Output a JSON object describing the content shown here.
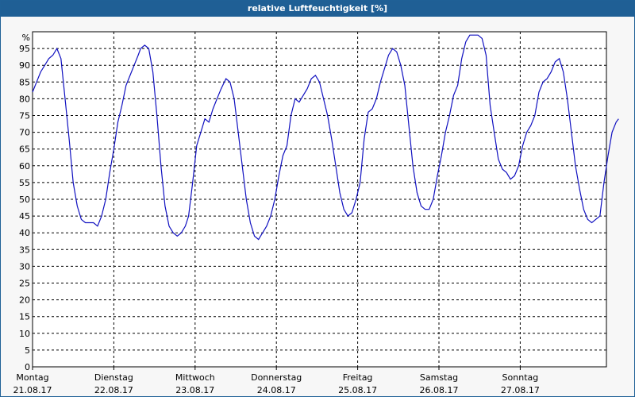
{
  "title": "relative Luftfeuchtigkeit [%]",
  "chart_data": {
    "type": "line",
    "title": "relative Luftfeuchtigkeit [%]",
    "ylabel": "%",
    "ylim": [
      0,
      100
    ],
    "yticks": [
      0,
      5,
      10,
      15,
      20,
      25,
      30,
      35,
      40,
      45,
      50,
      55,
      60,
      65,
      70,
      75,
      80,
      85,
      90,
      95
    ],
    "grid": true,
    "days": [
      {
        "name": "Montag",
        "date": "21.08.17"
      },
      {
        "name": "Dienstag",
        "date": "22.08.17"
      },
      {
        "name": "Mittwoch",
        "date": "23.08.17"
      },
      {
        "name": "Donnerstag",
        "date": "24.08.17"
      },
      {
        "name": "Freitag",
        "date": "25.08.17"
      },
      {
        "name": "Samstag",
        "date": "26.08.17"
      },
      {
        "name": "Sonntag",
        "date": "27.08.17"
      }
    ],
    "x_unit": "days since Monday 21.08.17 00:00",
    "line_color": "#1010c0",
    "series": [
      {
        "name": "",
        "points": [
          [
            0.0,
            82
          ],
          [
            0.05,
            85
          ],
          [
            0.1,
            88
          ],
          [
            0.15,
            90
          ],
          [
            0.2,
            92
          ],
          [
            0.25,
            93
          ],
          [
            0.3,
            95
          ],
          [
            0.35,
            92
          ],
          [
            0.4,
            80
          ],
          [
            0.45,
            68
          ],
          [
            0.5,
            55
          ],
          [
            0.55,
            48
          ],
          [
            0.6,
            44
          ],
          [
            0.65,
            43
          ],
          [
            0.75,
            43
          ],
          [
            0.8,
            42
          ],
          [
            0.85,
            45
          ],
          [
            0.9,
            50
          ],
          [
            0.95,
            58
          ],
          [
            1.0,
            65
          ],
          [
            1.05,
            73
          ],
          [
            1.1,
            78
          ],
          [
            1.15,
            84
          ],
          [
            1.2,
            87
          ],
          [
            1.25,
            90
          ],
          [
            1.3,
            93
          ],
          [
            1.33,
            95
          ],
          [
            1.38,
            96
          ],
          [
            1.43,
            95
          ],
          [
            1.48,
            88
          ],
          [
            1.53,
            75
          ],
          [
            1.58,
            60
          ],
          [
            1.63,
            48
          ],
          [
            1.68,
            42
          ],
          [
            1.73,
            40
          ],
          [
            1.78,
            39
          ],
          [
            1.83,
            40
          ],
          [
            1.88,
            42
          ],
          [
            1.92,
            45
          ],
          [
            1.97,
            55
          ],
          [
            2.02,
            66
          ],
          [
            2.07,
            70
          ],
          [
            2.12,
            74
          ],
          [
            2.17,
            73
          ],
          [
            2.22,
            77
          ],
          [
            2.27,
            80
          ],
          [
            2.32,
            83
          ],
          [
            2.38,
            86
          ],
          [
            2.43,
            85
          ],
          [
            2.48,
            80
          ],
          [
            2.53,
            70
          ],
          [
            2.58,
            60
          ],
          [
            2.63,
            50
          ],
          [
            2.68,
            43
          ],
          [
            2.73,
            39
          ],
          [
            2.78,
            38
          ],
          [
            2.83,
            40
          ],
          [
            2.88,
            42
          ],
          [
            2.93,
            45
          ],
          [
            2.98,
            50
          ],
          [
            3.03,
            57
          ],
          [
            3.08,
            63
          ],
          [
            3.13,
            66
          ],
          [
            3.18,
            75
          ],
          [
            3.23,
            80
          ],
          [
            3.28,
            79
          ],
          [
            3.33,
            81
          ],
          [
            3.38,
            83
          ],
          [
            3.43,
            86
          ],
          [
            3.48,
            87
          ],
          [
            3.53,
            85
          ],
          [
            3.58,
            80
          ],
          [
            3.63,
            75
          ],
          [
            3.68,
            68
          ],
          [
            3.73,
            60
          ],
          [
            3.78,
            52
          ],
          [
            3.83,
            47
          ],
          [
            3.88,
            45
          ],
          [
            3.93,
            46
          ],
          [
            3.98,
            50
          ],
          [
            4.03,
            55
          ],
          [
            4.08,
            68
          ],
          [
            4.13,
            76
          ],
          [
            4.18,
            77
          ],
          [
            4.23,
            80
          ],
          [
            4.28,
            85
          ],
          [
            4.33,
            89
          ],
          [
            4.38,
            93
          ],
          [
            4.43,
            95
          ],
          [
            4.48,
            94
          ],
          [
            4.53,
            90
          ],
          [
            4.58,
            84
          ],
          [
            4.63,
            72
          ],
          [
            4.68,
            60
          ],
          [
            4.73,
            52
          ],
          [
            4.78,
            48
          ],
          [
            4.83,
            47
          ],
          [
            4.88,
            47
          ],
          [
            4.93,
            50
          ],
          [
            4.98,
            57
          ],
          [
            5.03,
            63
          ],
          [
            5.08,
            70
          ],
          [
            5.13,
            75
          ],
          [
            5.18,
            81
          ],
          [
            5.23,
            84
          ],
          [
            5.28,
            92
          ],
          [
            5.33,
            97
          ],
          [
            5.38,
            99
          ],
          [
            5.43,
            99
          ],
          [
            5.48,
            99
          ],
          [
            5.53,
            98
          ],
          [
            5.58,
            93
          ],
          [
            5.63,
            78
          ],
          [
            5.68,
            70
          ],
          [
            5.73,
            62
          ],
          [
            5.78,
            59
          ],
          [
            5.83,
            58
          ],
          [
            5.88,
            56
          ],
          [
            5.93,
            57
          ],
          [
            5.98,
            60
          ],
          [
            6.03,
            66
          ],
          [
            6.08,
            70
          ],
          [
            6.13,
            72
          ],
          [
            6.18,
            75
          ],
          [
            6.23,
            82
          ],
          [
            6.28,
            85
          ],
          [
            6.33,
            86
          ],
          [
            6.38,
            88
          ],
          [
            6.43,
            91
          ],
          [
            6.48,
            92
          ],
          [
            6.53,
            88
          ],
          [
            6.58,
            80
          ],
          [
            6.63,
            70
          ],
          [
            6.68,
            60
          ],
          [
            6.73,
            53
          ],
          [
            6.78,
            47
          ],
          [
            6.83,
            44
          ],
          [
            6.88,
            43
          ],
          [
            6.93,
            44
          ],
          [
            6.98,
            45
          ],
          [
            7.03,
            55
          ],
          [
            7.08,
            63
          ],
          [
            7.13,
            70
          ],
          [
            7.18,
            73
          ],
          [
            7.21,
            74
          ]
        ]
      }
    ]
  }
}
